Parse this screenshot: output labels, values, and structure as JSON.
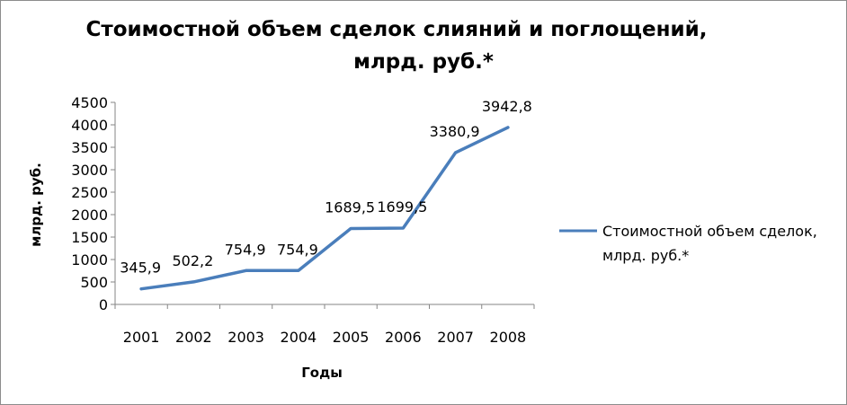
{
  "chart_data": {
    "type": "line",
    "title_line1": "Стоимостной объем сделок слияний  и поглощений,",
    "title_line2": "млрд. руб.*",
    "xlabel": "Годы",
    "ylabel": "млрд. руб.",
    "categories": [
      "2001",
      "2002",
      "2003",
      "2004",
      "2005",
      "2006",
      "2007",
      "2008"
    ],
    "series": [
      {
        "name": "Стоимостной объем сделок, млрд. руб.*",
        "legend_line1": "Стоимостной объем сделок,",
        "legend_line2": "млрд. руб.*",
        "values": [
          345.9,
          502.2,
          754.9,
          754.9,
          1689.5,
          1699.5,
          3380.9,
          3942.8
        ],
        "labels": [
          "345,9",
          "502,2",
          "754,9",
          "754,9",
          "1689,5",
          "1699,5",
          "3380,9",
          "3942,8"
        ],
        "color": "#4a7ebb"
      }
    ],
    "ylim": [
      0,
      4500
    ],
    "yticks": [
      0,
      500,
      1000,
      1500,
      2000,
      2500,
      3000,
      3500,
      4000,
      4500
    ],
    "grid": false,
    "legend_position": "right"
  }
}
